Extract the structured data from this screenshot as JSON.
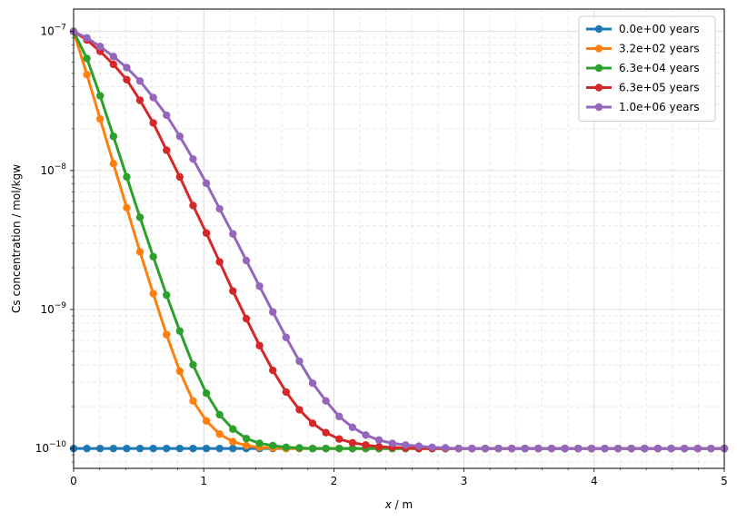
{
  "chart_data": {
    "type": "line",
    "title": "",
    "xlabel_var": "x",
    "xlabel_unit": " / m",
    "ylabel": "Cs concentration / mol/kgw",
    "xlim": [
      0,
      5
    ],
    "ylim": [
      7.2e-11,
      1.45e-07
    ],
    "yscale": "log",
    "grid": "major solid, minor dashed",
    "legend_position": "top-right",
    "x_ticks": [
      "0",
      "1",
      "2",
      "3",
      "4",
      "5"
    ],
    "y_ticks": [
      {
        "base": "10",
        "exp": "−10",
        "value": 1e-10
      },
      {
        "base": "10",
        "exp": "−9",
        "value": 1e-09
      },
      {
        "base": "10",
        "exp": "−8",
        "value": 1e-08
      },
      {
        "base": "10",
        "exp": "−7",
        "value": 1e-07
      }
    ],
    "x": [
      0,
      0.102,
      0.204,
      0.306,
      0.408,
      0.51,
      0.612,
      0.714,
      0.816,
      0.918,
      1.02,
      1.122,
      1.224,
      1.327,
      1.429,
      1.531,
      1.633,
      1.735,
      1.837,
      1.939,
      2.041,
      2.143,
      2.245,
      2.347,
      2.449,
      2.551,
      2.653,
      2.755,
      2.857,
      2.959,
      3.061,
      3.163,
      3.265,
      3.367,
      3.469,
      3.571,
      3.673,
      3.776,
      3.878,
      3.98,
      4.082,
      4.184,
      4.286,
      4.388,
      4.49,
      4.592,
      4.694,
      4.796,
      4.898,
      5.0
    ],
    "series": [
      {
        "name": "0.0e+00 years",
        "color": "#1f77b4",
        "values": [
          1e-10,
          1e-10,
          1e-10,
          1e-10,
          1e-10,
          1e-10,
          1e-10,
          1e-10,
          1e-10,
          1e-10,
          1e-10,
          1e-10,
          1e-10,
          1e-10,
          1e-10,
          1e-10,
          1e-10,
          1e-10,
          1e-10,
          1e-10,
          1e-10,
          1e-10,
          1e-10,
          1e-10,
          1e-10,
          1e-10,
          1e-10,
          1e-10,
          1e-10,
          1e-10,
          1e-10,
          1e-10,
          1e-10,
          1e-10,
          1e-10,
          1e-10,
          1e-10,
          1e-10,
          1e-10,
          1e-10,
          1e-10,
          1e-10,
          1e-10,
          1e-10,
          1e-10,
          1e-10,
          1e-10,
          1e-10,
          1e-10,
          1e-10
        ]
      },
      {
        "name": "3.2e+02 years",
        "color": "#ff7f0e",
        "values": [
          1e-07,
          4.9e-08,
          2.35e-08,
          1.12e-08,
          5.4e-09,
          2.6e-09,
          1.3e-09,
          6.6e-10,
          3.6e-10,
          2.2e-10,
          1.58e-10,
          1.27e-10,
          1.12e-10,
          1.05e-10,
          1.02e-10,
          1.01e-10,
          1e-10,
          1e-10,
          1e-10,
          1e-10,
          1e-10,
          1e-10,
          1e-10,
          1e-10,
          1e-10,
          1e-10,
          1e-10,
          1e-10,
          1e-10,
          1e-10,
          1e-10,
          1e-10,
          1e-10,
          1e-10,
          1e-10,
          1e-10,
          1e-10,
          1e-10,
          1e-10,
          1e-10,
          1e-10,
          1e-10,
          1e-10,
          1e-10,
          1e-10,
          1e-10,
          1e-10,
          1e-10,
          1e-10,
          1e-10
        ]
      },
      {
        "name": "6.3e+04 years",
        "color": "#2ca02c",
        "values": [
          1e-07,
          6.4e-08,
          3.45e-08,
          1.76e-08,
          9e-09,
          4.6e-09,
          2.4e-09,
          1.27e-09,
          7e-10,
          4e-10,
          2.5e-10,
          1.75e-10,
          1.38e-10,
          1.18e-10,
          1.09e-10,
          1.05e-10,
          1.02e-10,
          1.01e-10,
          1e-10,
          1e-10,
          1e-10,
          1e-10,
          1e-10,
          1e-10,
          1e-10,
          1e-10,
          1e-10,
          1e-10,
          1e-10,
          1e-10,
          1e-10,
          1e-10,
          1e-10,
          1e-10,
          1e-10,
          1e-10,
          1e-10,
          1e-10,
          1e-10,
          1e-10,
          1e-10,
          1e-10,
          1e-10,
          1e-10,
          1e-10,
          1e-10,
          1e-10,
          1e-10,
          1e-10,
          1e-10
        ]
      },
      {
        "name": "6.3e+05 years",
        "color": "#d62728",
        "values": [
          1e-07,
          8.7e-08,
          7.2e-08,
          5.8e-08,
          4.5e-08,
          3.2e-08,
          2.2e-08,
          1.4e-08,
          9e-09,
          5.6e-09,
          3.55e-09,
          2.2e-09,
          1.36e-09,
          8.6e-10,
          5.5e-10,
          3.65e-10,
          2.55e-10,
          1.9e-10,
          1.52e-10,
          1.3e-10,
          1.17e-10,
          1.1e-10,
          1.06e-10,
          1.03e-10,
          1.02e-10,
          1.01e-10,
          1e-10,
          1e-10,
          1e-10,
          1e-10,
          1e-10,
          1e-10,
          1e-10,
          1e-10,
          1e-10,
          1e-10,
          1e-10,
          1e-10,
          1e-10,
          1e-10,
          1e-10,
          1e-10,
          1e-10,
          1e-10,
          1e-10,
          1e-10,
          1e-10,
          1e-10,
          1e-10,
          1e-10
        ]
      },
      {
        "name": "1.0e+06 years",
        "color": "#9467bd",
        "values": [
          1e-07,
          9e-08,
          7.8e-08,
          6.6e-08,
          5.5e-08,
          4.4e-08,
          3.35e-08,
          2.5e-08,
          1.76e-08,
          1.21e-08,
          8.1e-09,
          5.3e-09,
          3.5e-09,
          2.25e-09,
          1.47e-09,
          9.6e-10,
          6.3e-10,
          4.25e-10,
          2.95e-10,
          2.2e-10,
          1.7e-10,
          1.42e-10,
          1.25e-10,
          1.15e-10,
          1.09e-10,
          1.06e-10,
          1.04e-10,
          1.02e-10,
          1.01e-10,
          1e-10,
          1e-10,
          1e-10,
          1e-10,
          1e-10,
          1e-10,
          1e-10,
          1e-10,
          1e-10,
          1e-10,
          1e-10,
          1e-10,
          1e-10,
          1e-10,
          1e-10,
          1e-10,
          1e-10,
          1e-10,
          1e-10,
          1e-10,
          1e-10
        ]
      }
    ]
  }
}
